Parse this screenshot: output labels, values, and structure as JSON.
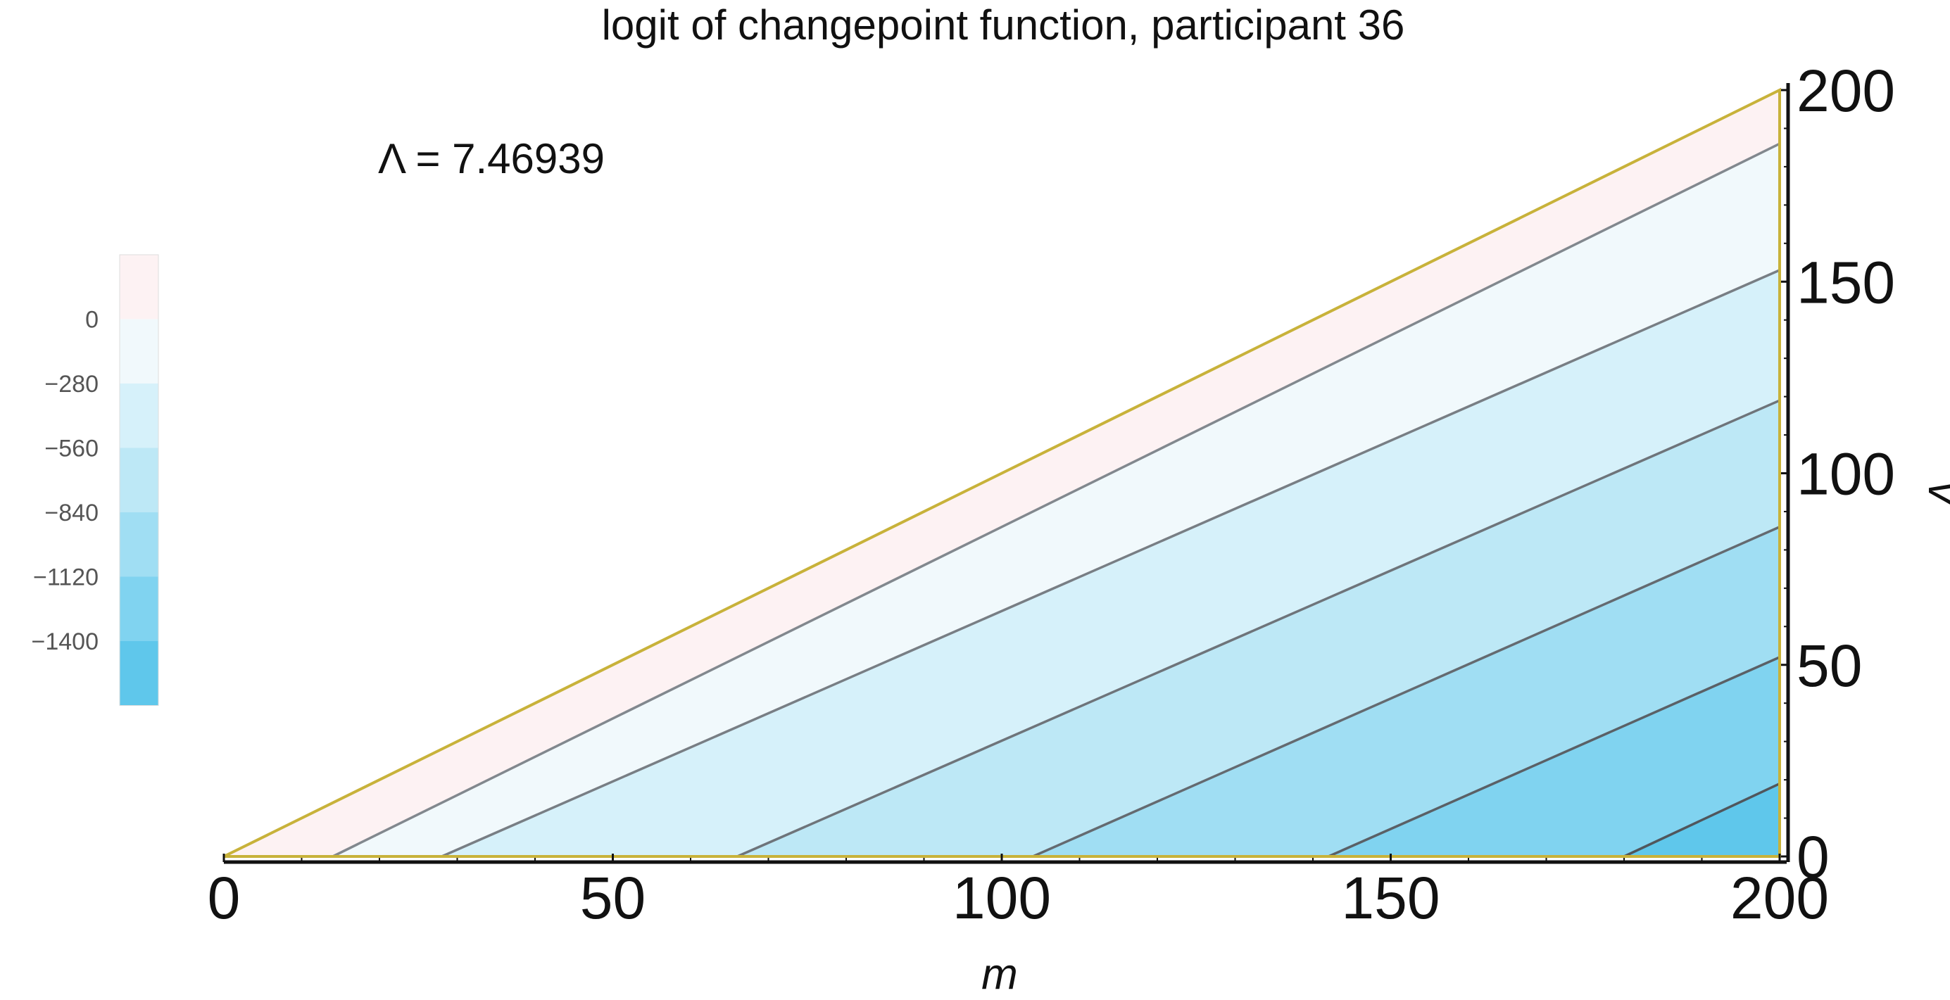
{
  "chart_data": {
    "type": "contour",
    "title": "logit of changepoint function, participant 36",
    "annotation": "Λ = 7.46939",
    "xlabel": "m",
    "ylabel": "v",
    "xlim": [
      0,
      200
    ],
    "ylim": [
      0,
      200
    ],
    "x_ticks": [
      "0",
      "50",
      "100",
      "150",
      "200"
    ],
    "y_ticks": [
      "0",
      "50",
      "100",
      "150",
      "200"
    ],
    "domain": "0 ≤ v ≤ m ≤ 200",
    "contour_lines": [
      {
        "level": 0,
        "from": [
          200,
          186
        ],
        "to": [
          14,
          0
        ]
      },
      {
        "level": -280,
        "from": [
          200,
          153
        ],
        "to": [
          28,
          0
        ]
      },
      {
        "level": -560,
        "from": [
          200,
          119
        ],
        "to": [
          66,
          0
        ]
      },
      {
        "level": -840,
        "from": [
          200,
          86
        ],
        "to": [
          104,
          0
        ]
      },
      {
        "level": -1120,
        "from": [
          200,
          52
        ],
        "to": [
          142,
          0
        ]
      },
      {
        "level": -1400,
        "from": [
          200,
          19
        ],
        "to": [
          180,
          0
        ]
      }
    ],
    "colorbar": {
      "ticks": [
        "0",
        "−280",
        "−560",
        "−840",
        "−1120",
        "−1400"
      ],
      "levels": [
        0,
        -280,
        -560,
        -840,
        -1120,
        -1400
      ],
      "band_colors": [
        "#fdf2f3",
        "#f1f9fc",
        "#d6f1fa",
        "#bde8f6",
        "#a0def3",
        "#80d3f0",
        "#5fc7eb"
      ]
    },
    "boundary_color": "#c8b23a",
    "grid": false
  }
}
